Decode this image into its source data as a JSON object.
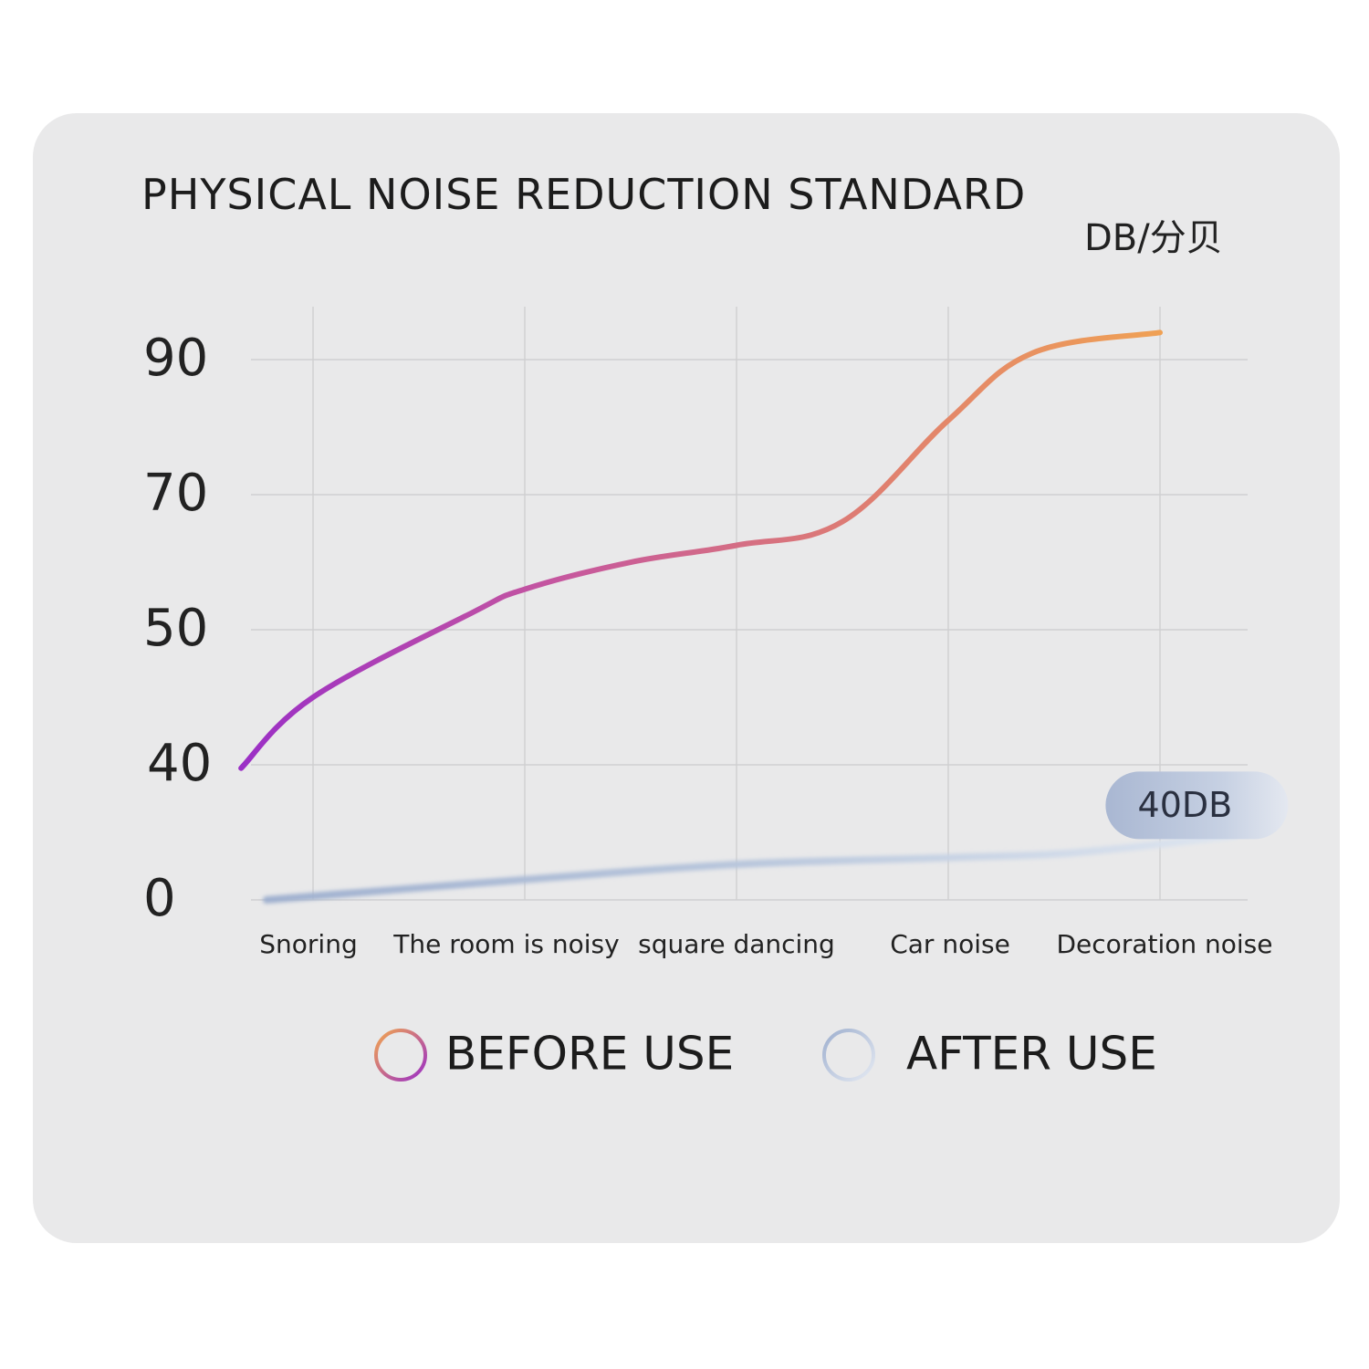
{
  "chart_data": {
    "type": "line",
    "title": "PHYSICAL NOISE REDUCTION STANDARD",
    "ylabel": "DB/分贝",
    "categories": [
      "Snoring",
      "The room is noisy",
      "square dancing",
      "Car noise",
      "Decoration noise"
    ],
    "y_ticks": [
      {
        "value": 0,
        "label": "0"
      },
      {
        "value": 40,
        "label": "40"
      },
      {
        "value": 50,
        "label": "50"
      },
      {
        "value": 70,
        "label": "70"
      },
      {
        "value": 90,
        "label": "90"
      }
    ],
    "ylim": [
      0,
      98
    ],
    "grid": true,
    "legend_position": "bottom",
    "series": [
      {
        "name": "BEFORE USE",
        "points": [
          {
            "x": -0.34,
            "y": 39
          },
          {
            "x": 0,
            "y": 45
          },
          {
            "x": 0.75,
            "y": 52.5
          },
          {
            "x": 1,
            "y": 56
          },
          {
            "x": 1.5,
            "y": 60
          },
          {
            "x": 2,
            "y": 62.5
          },
          {
            "x": 2.5,
            "y": 66
          },
          {
            "x": 3,
            "y": 81
          },
          {
            "x": 3.4,
            "y": 91
          },
          {
            "x": 4,
            "y": 94
          }
        ],
        "colors": [
          "#9b2fc6",
          "#c6579e",
          "#e0806f",
          "#f2a650"
        ]
      },
      {
        "name": "AFTER USE",
        "points": [
          {
            "x": -0.22,
            "y": 0
          },
          {
            "x": 1,
            "y": 6
          },
          {
            "x": 2,
            "y": 10.5
          },
          {
            "x": 3,
            "y": 12.5
          },
          {
            "x": 3.6,
            "y": 14
          },
          {
            "x": 4.35,
            "y": 19
          }
        ],
        "colors": [
          "#9fb0cf",
          "#b8c6dc",
          "#dde5f0"
        ]
      }
    ],
    "annotations": [
      {
        "text": "40DB",
        "x": 3.95,
        "y": 28
      }
    ]
  }
}
